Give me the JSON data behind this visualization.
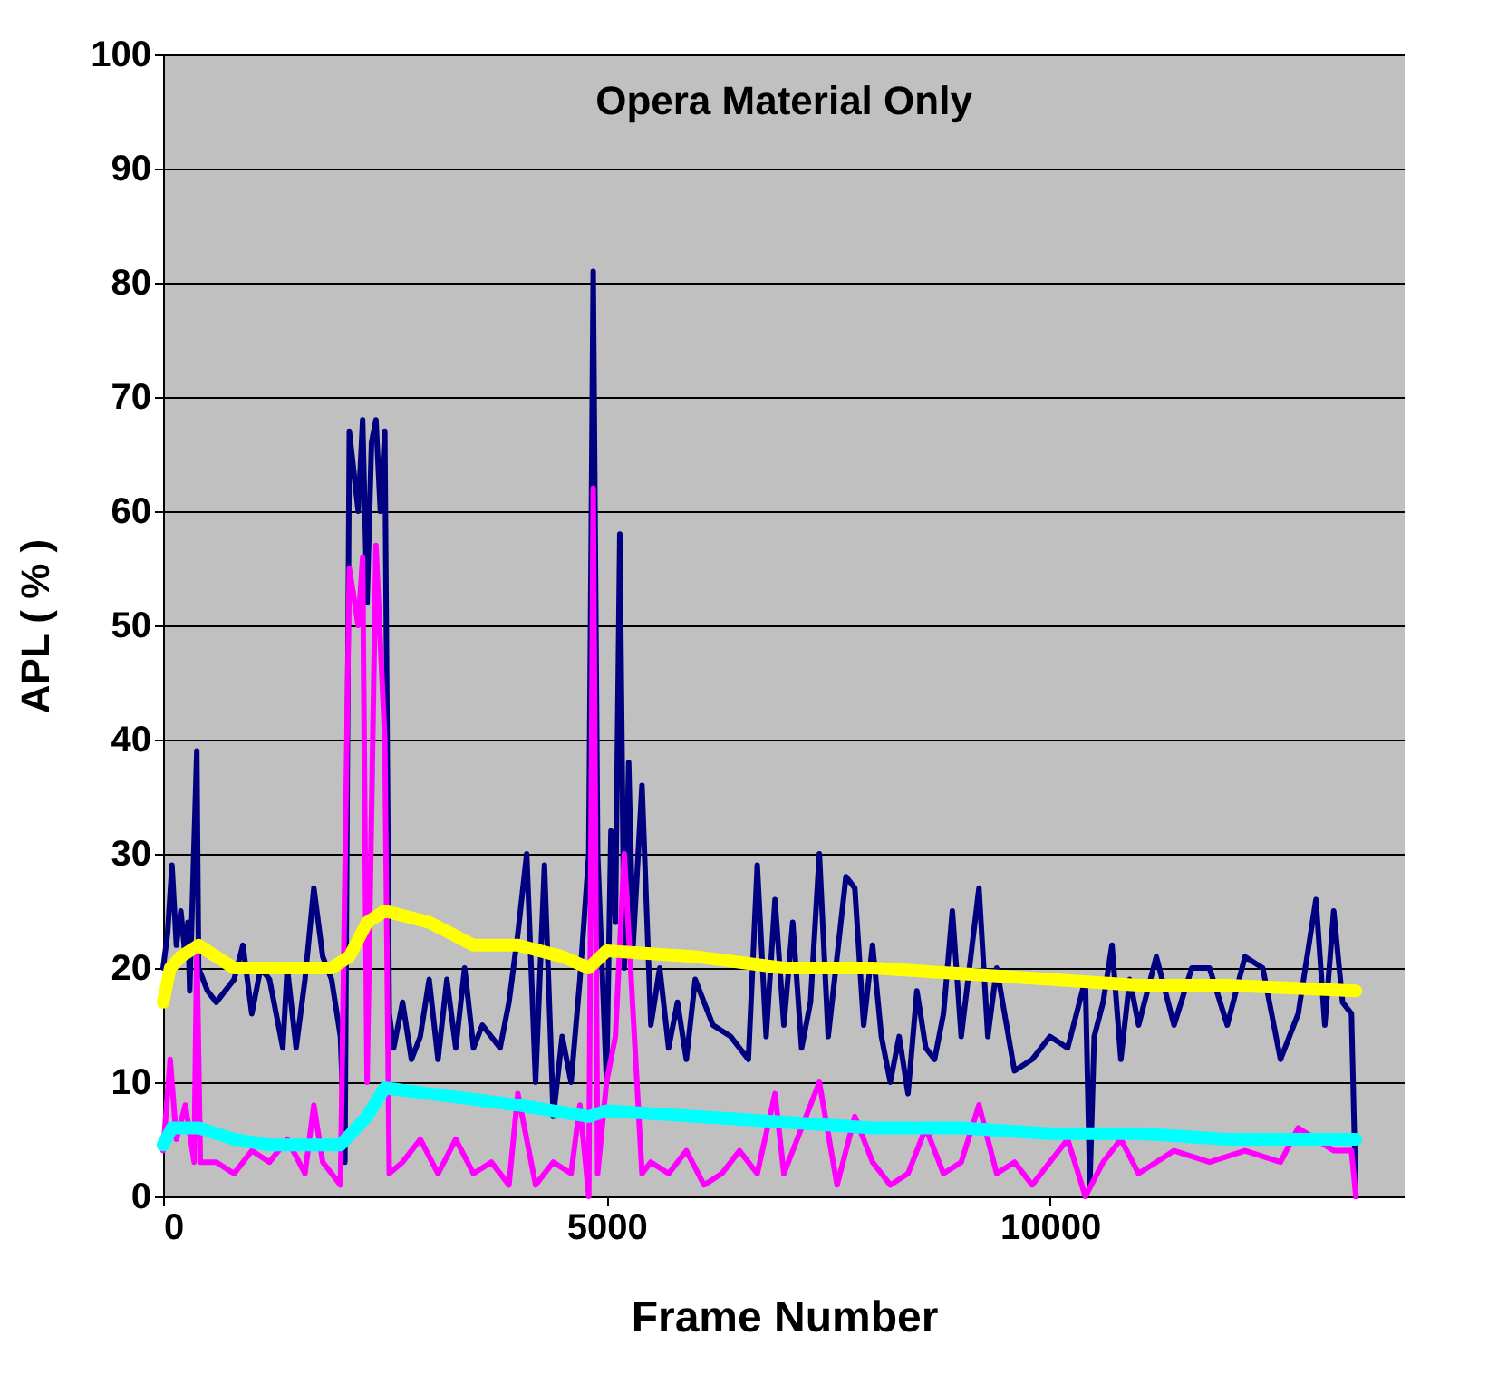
{
  "chart_data": {
    "type": "line",
    "title": "Opera Material Only",
    "xlabel": "Frame Number",
    "ylabel": "APL ( % )",
    "xlim": [
      0,
      14000
    ],
    "xticks": [
      0,
      5000,
      10000
    ],
    "ylim": [
      0,
      100
    ],
    "yticks": [
      0,
      10,
      20,
      30,
      40,
      50,
      60,
      70,
      80,
      90,
      100
    ],
    "grid": "y",
    "marker": "none",
    "line_style": "solid",
    "series": [
      {
        "color": "#000080",
        "x": [
          0,
          50,
          100,
          150,
          200,
          250,
          280,
          300,
          380,
          400,
          500,
          600,
          700,
          800,
          900,
          1000,
          1100,
          1200,
          1350,
          1400,
          1500,
          1600,
          1700,
          1800,
          1900,
          2000,
          2050,
          2100,
          2200,
          2250,
          2300,
          2350,
          2400,
          2450,
          2500,
          2550,
          2600,
          2700,
          2800,
          2900,
          3000,
          3100,
          3200,
          3300,
          3400,
          3500,
          3600,
          3800,
          3900,
          4000,
          4100,
          4200,
          4300,
          4400,
          4500,
          4600,
          4700,
          4800,
          4850,
          4900,
          5000,
          5050,
          5100,
          5150,
          5200,
          5250,
          5300,
          5400,
          5500,
          5600,
          5700,
          5800,
          5900,
          6000,
          6200,
          6400,
          6600,
          6700,
          6800,
          6900,
          7000,
          7100,
          7200,
          7300,
          7400,
          7500,
          7700,
          7800,
          7900,
          8000,
          8100,
          8200,
          8300,
          8400,
          8500,
          8600,
          8700,
          8800,
          8900,
          9000,
          9200,
          9300,
          9400,
          9600,
          9800,
          10000,
          10200,
          10400,
          10450,
          10500,
          10600,
          10700,
          10800,
          10900,
          11000,
          11200,
          11400,
          11600,
          11800,
          12000,
          12200,
          12400,
          12600,
          12800,
          12900,
          13000,
          13100,
          13200,
          13300,
          13400,
          13450
        ],
        "values": [
          20,
          23,
          29,
          22,
          25,
          21,
          24,
          18,
          39,
          20,
          18,
          17,
          18,
          19,
          22,
          16,
          20,
          19,
          13,
          20,
          13,
          19,
          27,
          21,
          19,
          14,
          3,
          67,
          60,
          68,
          52,
          66,
          68,
          60,
          67,
          16,
          13,
          17,
          12,
          14,
          19,
          12,
          19,
          13,
          20,
          13,
          15,
          13,
          17,
          23,
          30,
          10,
          29,
          7,
          14,
          10,
          19,
          30,
          81,
          30,
          10,
          32,
          24,
          58,
          20,
          38,
          22,
          36,
          15,
          20,
          13,
          17,
          12,
          19,
          15,
          14,
          12,
          29,
          14,
          26,
          15,
          24,
          13,
          17,
          30,
          14,
          28,
          27,
          15,
          22,
          14,
          10,
          14,
          9,
          18,
          13,
          12,
          16,
          25,
          14,
          27,
          14,
          20,
          11,
          12,
          14,
          13,
          19,
          1,
          14,
          17,
          22,
          12,
          19,
          15,
          21,
          15,
          20,
          20,
          15,
          21,
          20,
          12,
          16,
          21,
          26,
          15,
          25,
          17,
          16,
          0
        ]
      },
      {
        "color": "#ff00ff",
        "x": [
          0,
          80,
          150,
          250,
          350,
          380,
          420,
          600,
          800,
          1000,
          1200,
          1400,
          1600,
          1700,
          1800,
          2000,
          2100,
          2200,
          2250,
          2300,
          2400,
          2500,
          2550,
          2700,
          2900,
          3100,
          3300,
          3500,
          3700,
          3900,
          4000,
          4200,
          4400,
          4600,
          4700,
          4800,
          4850,
          4900,
          5000,
          5100,
          5200,
          5300,
          5400,
          5500,
          5700,
          5900,
          6100,
          6300,
          6500,
          6700,
          6900,
          7000,
          7200,
          7400,
          7600,
          7800,
          8000,
          8200,
          8400,
          8600,
          8800,
          9000,
          9200,
          9400,
          9600,
          9800,
          10000,
          10200,
          10400,
          10600,
          10800,
          11000,
          11400,
          11800,
          12200,
          12600,
          12800,
          13000,
          13200,
          13400,
          13450
        ],
        "values": [
          4,
          12,
          5,
          8,
          3,
          22,
          3,
          3,
          2,
          4,
          3,
          5,
          2,
          8,
          3,
          1,
          55,
          50,
          56,
          10,
          57,
          40,
          2,
          3,
          5,
          2,
          5,
          2,
          3,
          1,
          9,
          1,
          3,
          2,
          8,
          0,
          62,
          2,
          10,
          14,
          30,
          16,
          2,
          3,
          2,
          4,
          1,
          2,
          4,
          2,
          9,
          2,
          6,
          10,
          1,
          7,
          3,
          1,
          2,
          6,
          2,
          3,
          8,
          2,
          3,
          1,
          3,
          5,
          0,
          3,
          5,
          2,
          4,
          3,
          4,
          3,
          6,
          5,
          4,
          4,
          0
        ]
      },
      {
        "color": "#ffff00",
        "x": [
          0,
          80,
          200,
          400,
          600,
          800,
          1000,
          1500,
          1900,
          2100,
          2300,
          2500,
          3000,
          3500,
          4000,
          4500,
          4800,
          5000,
          6000,
          7000,
          8000,
          9000,
          10000,
          11000,
          12000,
          13450
        ],
        "values": [
          17,
          20,
          21,
          22,
          21,
          20,
          20,
          20,
          20,
          21,
          24,
          25,
          24,
          22,
          22,
          21,
          20,
          21.5,
          21,
          20,
          20,
          19.5,
          19,
          18.5,
          18.5,
          18
        ]
      },
      {
        "color": "#00ffff",
        "x": [
          0,
          100,
          400,
          800,
          1200,
          2000,
          2300,
          2500,
          3000,
          4000,
          4800,
          5000,
          6000,
          7000,
          8000,
          9000,
          10000,
          11000,
          12000,
          13450
        ],
        "values": [
          4.5,
          6,
          6,
          5,
          4.5,
          4.5,
          7,
          9.5,
          9,
          8,
          7,
          7.5,
          7,
          6.5,
          6,
          6,
          5.5,
          5.5,
          5,
          5
        ]
      }
    ]
  }
}
